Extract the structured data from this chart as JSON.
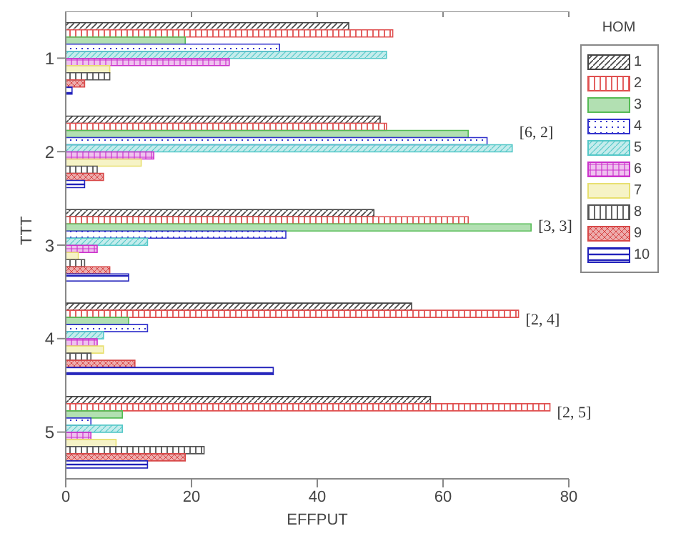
{
  "chart_data": {
    "type": "bar",
    "orientation": "horizontal",
    "xlabel": "EFFPUT",
    "ylabel": "TTT",
    "legend_title": "HOM",
    "legend": "right",
    "categories": [
      "1",
      "2",
      "3",
      "4",
      "5"
    ],
    "series": [
      {
        "name": "1",
        "color": "#444444",
        "values": [
          45,
          50,
          49,
          55,
          58
        ]
      },
      {
        "name": "2",
        "color": "#e05050",
        "values": [
          52,
          51,
          64,
          72,
          77
        ]
      },
      {
        "name": "3",
        "color": "#55bb55",
        "values": [
          19,
          64,
          74,
          10,
          9
        ]
      },
      {
        "name": "4",
        "color": "#3333cc",
        "values": [
          34,
          67,
          35,
          13,
          4
        ]
      },
      {
        "name": "5",
        "color": "#55c8c8",
        "values": [
          51,
          71,
          13,
          6,
          9
        ]
      },
      {
        "name": "6",
        "color": "#cc33cc",
        "values": [
          26,
          14,
          5,
          5,
          4
        ]
      },
      {
        "name": "7",
        "color": "#e8e070",
        "values": [
          7,
          12,
          2,
          6,
          8
        ]
      },
      {
        "name": "8",
        "color": "#555555",
        "values": [
          7,
          5,
          3,
          4,
          22
        ]
      },
      {
        "name": "9",
        "color": "#d84848",
        "values": [
          3,
          6,
          7,
          11,
          19
        ]
      },
      {
        "name": "10",
        "color": "#2222bb",
        "values": [
          1,
          3,
          10,
          33,
          13
        ]
      }
    ],
    "xlim": [
      0,
      80
    ],
    "xticks": [
      0,
      20,
      40,
      60,
      80
    ],
    "grid": false,
    "annotations": [
      "[6, 2]",
      "[3, 3]",
      "[2, 4]",
      "[2, 5]"
    ]
  }
}
